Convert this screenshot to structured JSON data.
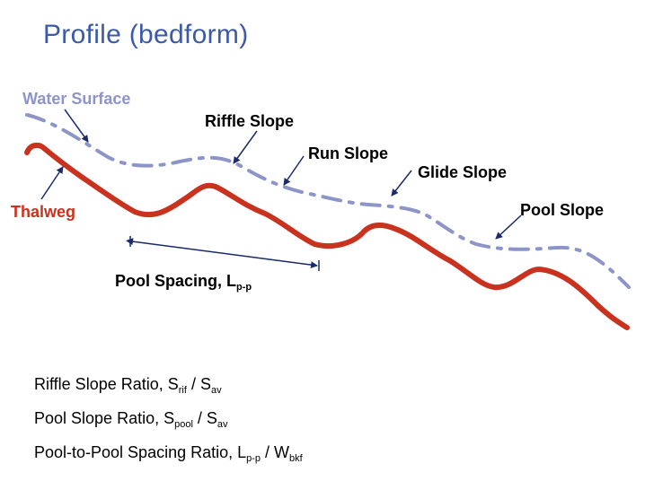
{
  "title": "Profile (bedform)",
  "labels": {
    "water_surface": "Water Surface",
    "thalweg": "Thalweg",
    "riffle_slope": "Riffle Slope",
    "run_slope": "Run Slope",
    "glide_slope": "Glide Slope",
    "pool_slope": "Pool Slope",
    "pool_spacing": "Pool Spacing, L",
    "pool_spacing_sub": "p-p"
  },
  "ratios": [
    {
      "text": "Riffle Slope Ratio,  S",
      "sub1": "rif",
      "mid": " / S",
      "sub2": "av"
    },
    {
      "text": "Pool Slope Ratio,  S",
      "sub1": "pool",
      "mid": " / S",
      "sub2": "av"
    },
    {
      "text": "Pool-to-Pool Spacing Ratio,  L",
      "sub1": "p-p",
      "mid": " / W",
      "sub2": "bkf"
    }
  ],
  "colors": {
    "title": "#3c5aa8",
    "water_surface": "#8c94c8",
    "thalweg": "#c8321e",
    "arrows": "#1a2a6a"
  }
}
